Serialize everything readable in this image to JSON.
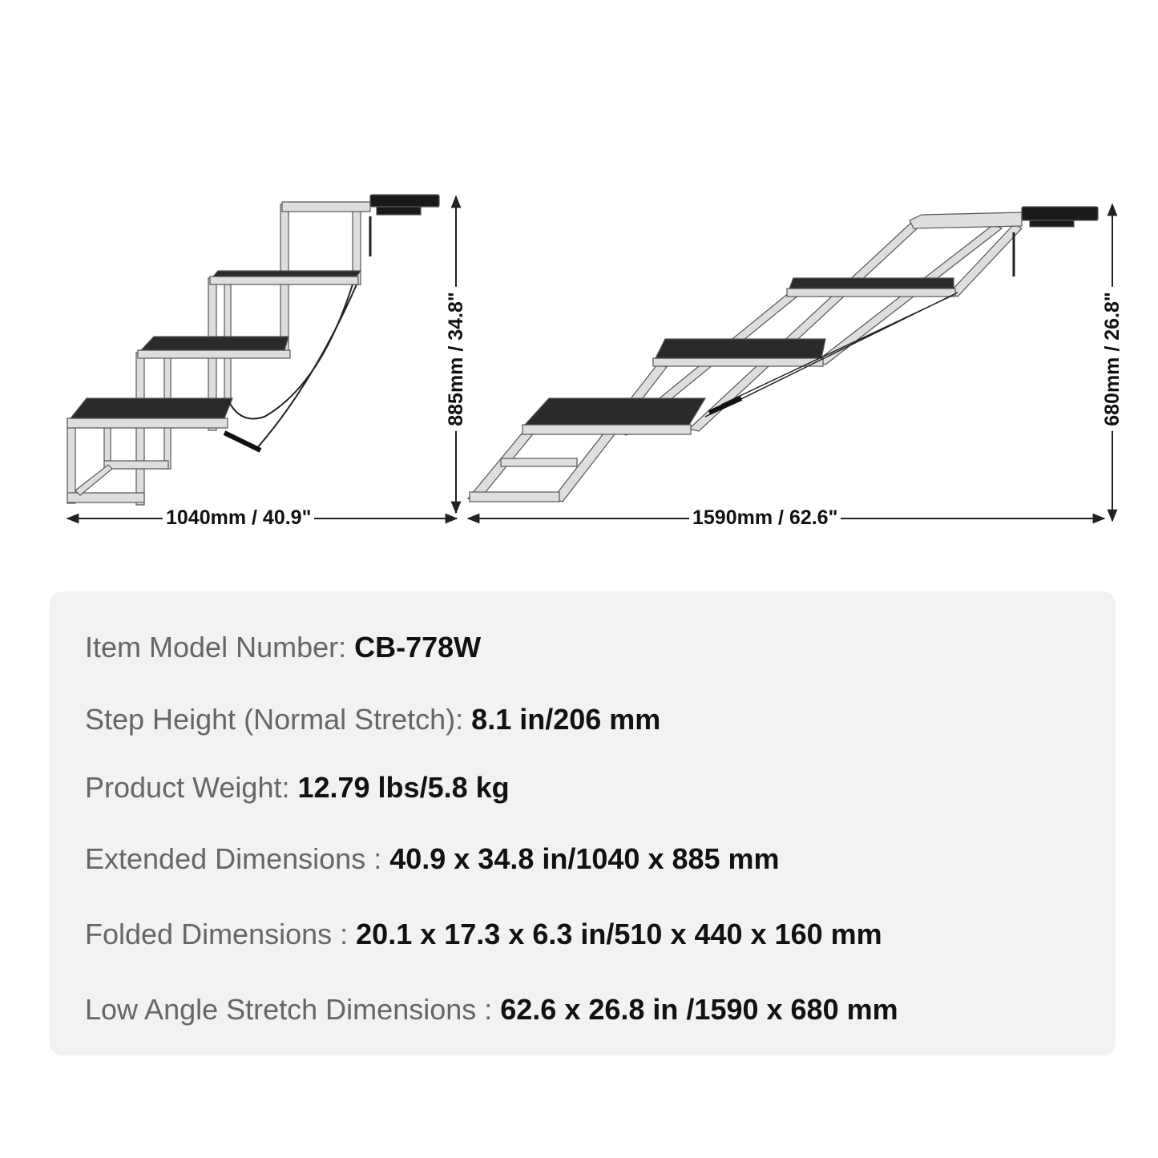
{
  "dimensions": {
    "extended_width": "1040mm / 40.9\"",
    "extended_height": "885mm / 34.8\"",
    "stretch_width": "1590mm / 62.6\"",
    "stretch_height": "680mm / 26.8\""
  },
  "specs": [
    {
      "label": "Item Model Number: ",
      "value": "CB-778W"
    },
    {
      "label": "Step Height (Normal Stretch): ",
      "value": "8.1 in/206 mm"
    },
    {
      "label": "Product Weight: ",
      "value": "12.79 lbs/5.8 kg"
    },
    {
      "label": "Extended Dimensions : ",
      "value": "40.9 x 34.8 in/1040 x 885 mm"
    },
    {
      "label": "Folded Dimensions : ",
      "value": "20.1 x 17.3 x 6.3 in/510 x 440 x 160 mm"
    },
    {
      "label": "Low Angle Stretch Dimensions : ",
      "value": "62.6 x 26.8 in /1590 x 680 mm"
    }
  ],
  "colors": {
    "frame": "#dcdcdc",
    "tread": "#2a2a2a",
    "panel": "#f2f2f2",
    "label": "#666666",
    "value": "#111111"
  }
}
